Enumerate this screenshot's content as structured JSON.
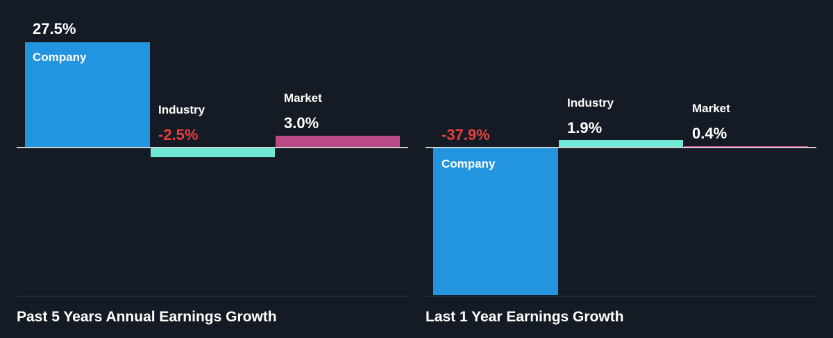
{
  "chart_data": [
    {
      "type": "bar",
      "title": "Past 5 Years Annual Earnings Growth",
      "categories": [
        "Company",
        "Industry",
        "Market"
      ],
      "values": [
        27.5,
        -2.5,
        3.0
      ],
      "value_labels": [
        "27.5%",
        "-2.5%",
        "3.0%"
      ],
      "colors": [
        "#2394df",
        "#70e8d6",
        "#b94a86"
      ]
    },
    {
      "type": "bar",
      "title": "Last 1 Year Earnings Growth",
      "categories": [
        "Company",
        "Industry",
        "Market"
      ],
      "values": [
        -37.9,
        1.9,
        0.4
      ],
      "value_labels": [
        "-37.9%",
        "1.9%",
        "0.4%"
      ],
      "colors": [
        "#2394df",
        "#70e8d6",
        "#b94a86"
      ]
    }
  ],
  "negative_color": "#e8403f"
}
